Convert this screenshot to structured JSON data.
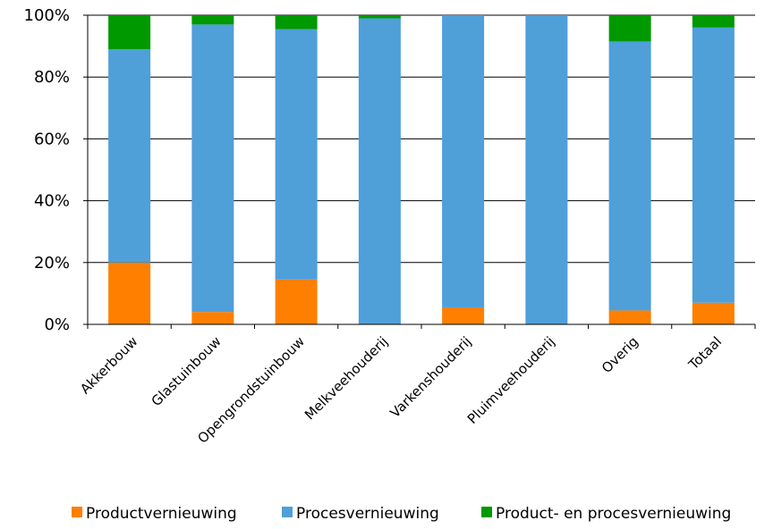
{
  "chart_data": {
    "type": "bar",
    "stacked": true,
    "categories": [
      "Akkerbouw",
      "Glastuinbouw",
      "Opengrondstuinbouw",
      "Melkveehouderij",
      "Varkenshouderij",
      "Pluimveehouderij",
      "Overig",
      "Totaal"
    ],
    "series": [
      {
        "name": "Productvernieuwing",
        "color": "#FF7F00",
        "values": [
          20,
          4,
          14.5,
          0,
          5.5,
          0,
          4.5,
          7
        ]
      },
      {
        "name": "Procesvernieuwing",
        "color": "#4F9FD9",
        "values": [
          69,
          93,
          81,
          99,
          94.5,
          100,
          87,
          89
        ]
      },
      {
        "name": "Product- en procesvernieuwing",
        "color": "#009900",
        "values": [
          11,
          3,
          4.5,
          1,
          0,
          0,
          8.5,
          4
        ]
      }
    ],
    "yticks": [
      "0%",
      "20%",
      "40%",
      "60%",
      "80%",
      "100%"
    ],
    "ylim": [
      0,
      100
    ],
    "grid": true,
    "legend_position": "bottom"
  }
}
